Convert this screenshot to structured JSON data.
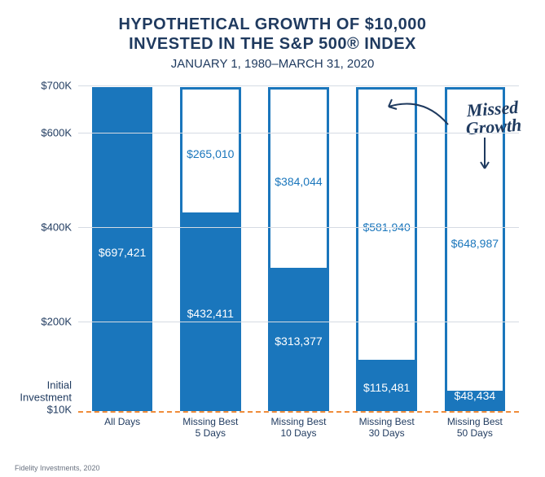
{
  "title_line1": "HYPOTHETICAL GROWTH OF $10,000",
  "title_line2": "INVESTED IN THE S&P 500® INDEX",
  "subtitle": "JANUARY 1, 1980–MARCH 31, 2020",
  "title_fontsize": 20,
  "subtitle_fontsize": 15,
  "title_color": "#1f3a5f",
  "chart": {
    "type": "bar",
    "ylim": [
      10,
      700
    ],
    "yticks": [
      {
        "v": 700,
        "label": "$700K"
      },
      {
        "v": 600,
        "label": "$600K"
      },
      {
        "v": 400,
        "label": "$400K"
      },
      {
        "v": 200,
        "label": "$200K"
      }
    ],
    "baseline": {
      "v": 10,
      "label_lines": [
        "Initial",
        "Investment",
        "$10K"
      ],
      "dash_color": "#f08c3a"
    },
    "ytick_fontsize": 13,
    "ytick_color": "#1f3a5f",
    "grid_color": "#d5dbe3",
    "bar_border_color": "#1a76bc",
    "bar_fill_color": "#1a76bc",
    "bar_border_width": 3,
    "value_label_fontsize": 14,
    "value_label_fill_color": "#ffffff",
    "value_label_missed_color": "#1a76bc",
    "categories": [
      {
        "label_l1": "All Days",
        "label_l2": "",
        "actual": 697.421,
        "actual_label": "$697,421",
        "missed_label": ""
      },
      {
        "label_l1": "Missing Best",
        "label_l2": "5 Days",
        "actual": 432.411,
        "actual_label": "$432,411",
        "missed_label": "$265,010"
      },
      {
        "label_l1": "Missing Best",
        "label_l2": "10 Days",
        "actual": 313.377,
        "actual_label": "$313,377",
        "missed_label": "$384,044"
      },
      {
        "label_l1": "Missing Best",
        "label_l2": "30 Days",
        "actual": 115.481,
        "actual_label": "$115,481",
        "missed_label": "$581,940"
      },
      {
        "label_l1": "Missing Best",
        "label_l2": "50 Days",
        "actual": 48.434,
        "actual_label": "$48,434",
        "missed_label": "$648,987"
      }
    ],
    "outer_top": 697.421,
    "xlabel_fontsize": 12,
    "xlabel_color": "#1f3a5f"
  },
  "annotation": {
    "text_l1": "Missed",
    "text_l2": "Growth",
    "fontsize": 22,
    "color": "#1f3a5f",
    "arrow_color": "#1f3a5f"
  },
  "footer": {
    "text": "Fidelity Investments, 2020",
    "fontsize": 9,
    "color": "#6a7280"
  }
}
